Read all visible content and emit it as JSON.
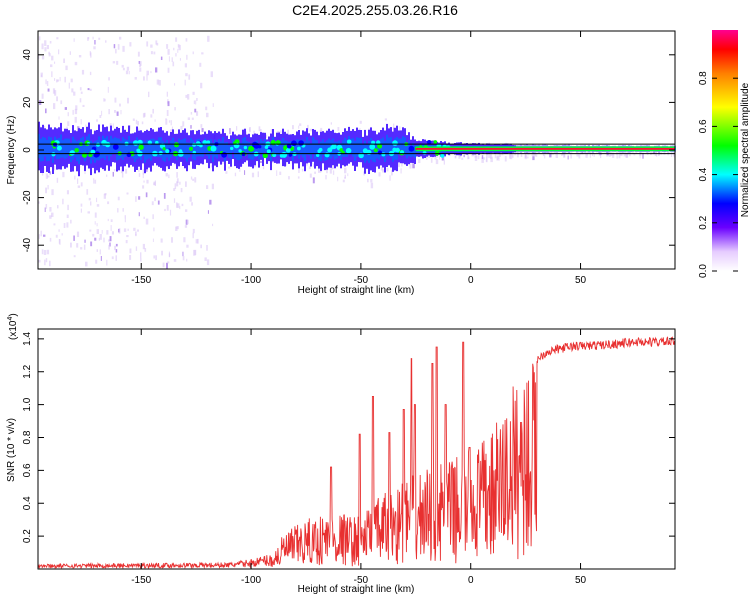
{
  "title": "C2E4.2025.255.03.26.R16",
  "colors": {
    "snr_line": "#e83030",
    "background": "#ffffff",
    "axis": "#000000"
  },
  "chart_data": [
    {
      "type": "heatmap",
      "name": "spectrogram",
      "xlabel": "Height of straight line (km)",
      "ylabel": "Frequency (Hz)",
      "xlim": [
        -197,
        93
      ],
      "ylim": [
        -50,
        50
      ],
      "xticks": [
        -150,
        -100,
        -50,
        0,
        50
      ],
      "xtick_labels": [
        "-150",
        "-100",
        "-50",
        "0",
        "50"
      ],
      "yticks": [
        -40,
        -20,
        0,
        20,
        40
      ],
      "ytick_labels": [
        "-40",
        "-20",
        "0",
        "20",
        "40"
      ],
      "colorbar": {
        "label": "Normalized spectral amplitude",
        "range": [
          0,
          1
        ],
        "ticks": [
          0.0,
          0.2,
          0.4,
          0.6,
          0.8
        ],
        "tick_labels": [
          "0.0",
          "0.2",
          "0.4",
          "0.6",
          "0.8"
        ]
      },
      "band_center_hz": 0.5,
      "band_halfwidth_hz": [
        [
          -197,
          9
        ],
        [
          -150,
          8
        ],
        [
          -120,
          7
        ],
        [
          -100,
          6
        ],
        [
          -80,
          7
        ],
        [
          -60,
          7
        ],
        [
          -45,
          8
        ],
        [
          -35,
          9
        ],
        [
          -25,
          4
        ],
        [
          -10,
          2.5
        ],
        [
          10,
          2
        ],
        [
          30,
          1.5
        ],
        [
          93,
          1.2
        ]
      ],
      "scatter_extent_hz": [
        [
          -197,
          48
        ],
        [
          -120,
          48
        ],
        [
          -115,
          10
        ],
        [
          -70,
          12
        ],
        [
          -40,
          15
        ],
        [
          -20,
          4
        ],
        [
          93,
          1
        ]
      ]
    },
    {
      "type": "line",
      "name": "snr",
      "xlabel": "Height of straight line (km)",
      "ylabel": "SNR (10 * v/v)",
      "multiplier_label": "(x10",
      "multiplier_exp": "4",
      "xlim": [
        -197,
        93
      ],
      "ylim": [
        0,
        1.46
      ],
      "xticks": [
        -150,
        -100,
        -50,
        0,
        50
      ],
      "xtick_labels": [
        "-150",
        "-100",
        "-50",
        "0",
        "50"
      ],
      "yticks": [
        0.2,
        0.4,
        0.6,
        0.8,
        1.0,
        1.2,
        1.4
      ],
      "ytick_labels": [
        "0.2",
        "0.4",
        "0.6",
        "0.8",
        "1.0",
        "1.2",
        "1.4"
      ],
      "envelope": [
        [
          -197,
          0.03
        ],
        [
          -110,
          0.04
        ],
        [
          -100,
          0.06
        ],
        [
          -90,
          0.1
        ],
        [
          -85,
          0.22
        ],
        [
          -78,
          0.28
        ],
        [
          -70,
          0.33
        ],
        [
          -60,
          0.35
        ],
        [
          -52,
          0.32
        ],
        [
          -45,
          0.4
        ],
        [
          -38,
          0.48
        ],
        [
          -30,
          0.55
        ],
        [
          -20,
          0.62
        ],
        [
          -12,
          0.65
        ],
        [
          0,
          0.72
        ],
        [
          10,
          0.85
        ],
        [
          15,
          1.0
        ],
        [
          20,
          1.15
        ],
        [
          25,
          1.25
        ],
        [
          30,
          1.3
        ],
        [
          35,
          1.35
        ],
        [
          45,
          1.38
        ],
        [
          60,
          1.39
        ],
        [
          75,
          1.41
        ],
        [
          93,
          1.41
        ]
      ],
      "spikes": [
        [
          -63.5,
          0.62
        ],
        [
          -50.5,
          0.82
        ],
        [
          -44.5,
          1.05
        ],
        [
          -37,
          0.83
        ],
        [
          -30.5,
          0.97
        ],
        [
          -27,
          1.28
        ],
        [
          -25.5,
          1.0
        ],
        [
          -17.5,
          1.25
        ],
        [
          -15.5,
          1.35
        ],
        [
          -11.5,
          1.0
        ],
        [
          -3.5,
          1.38
        ],
        [
          -0.5,
          0.74
        ]
      ]
    }
  ]
}
